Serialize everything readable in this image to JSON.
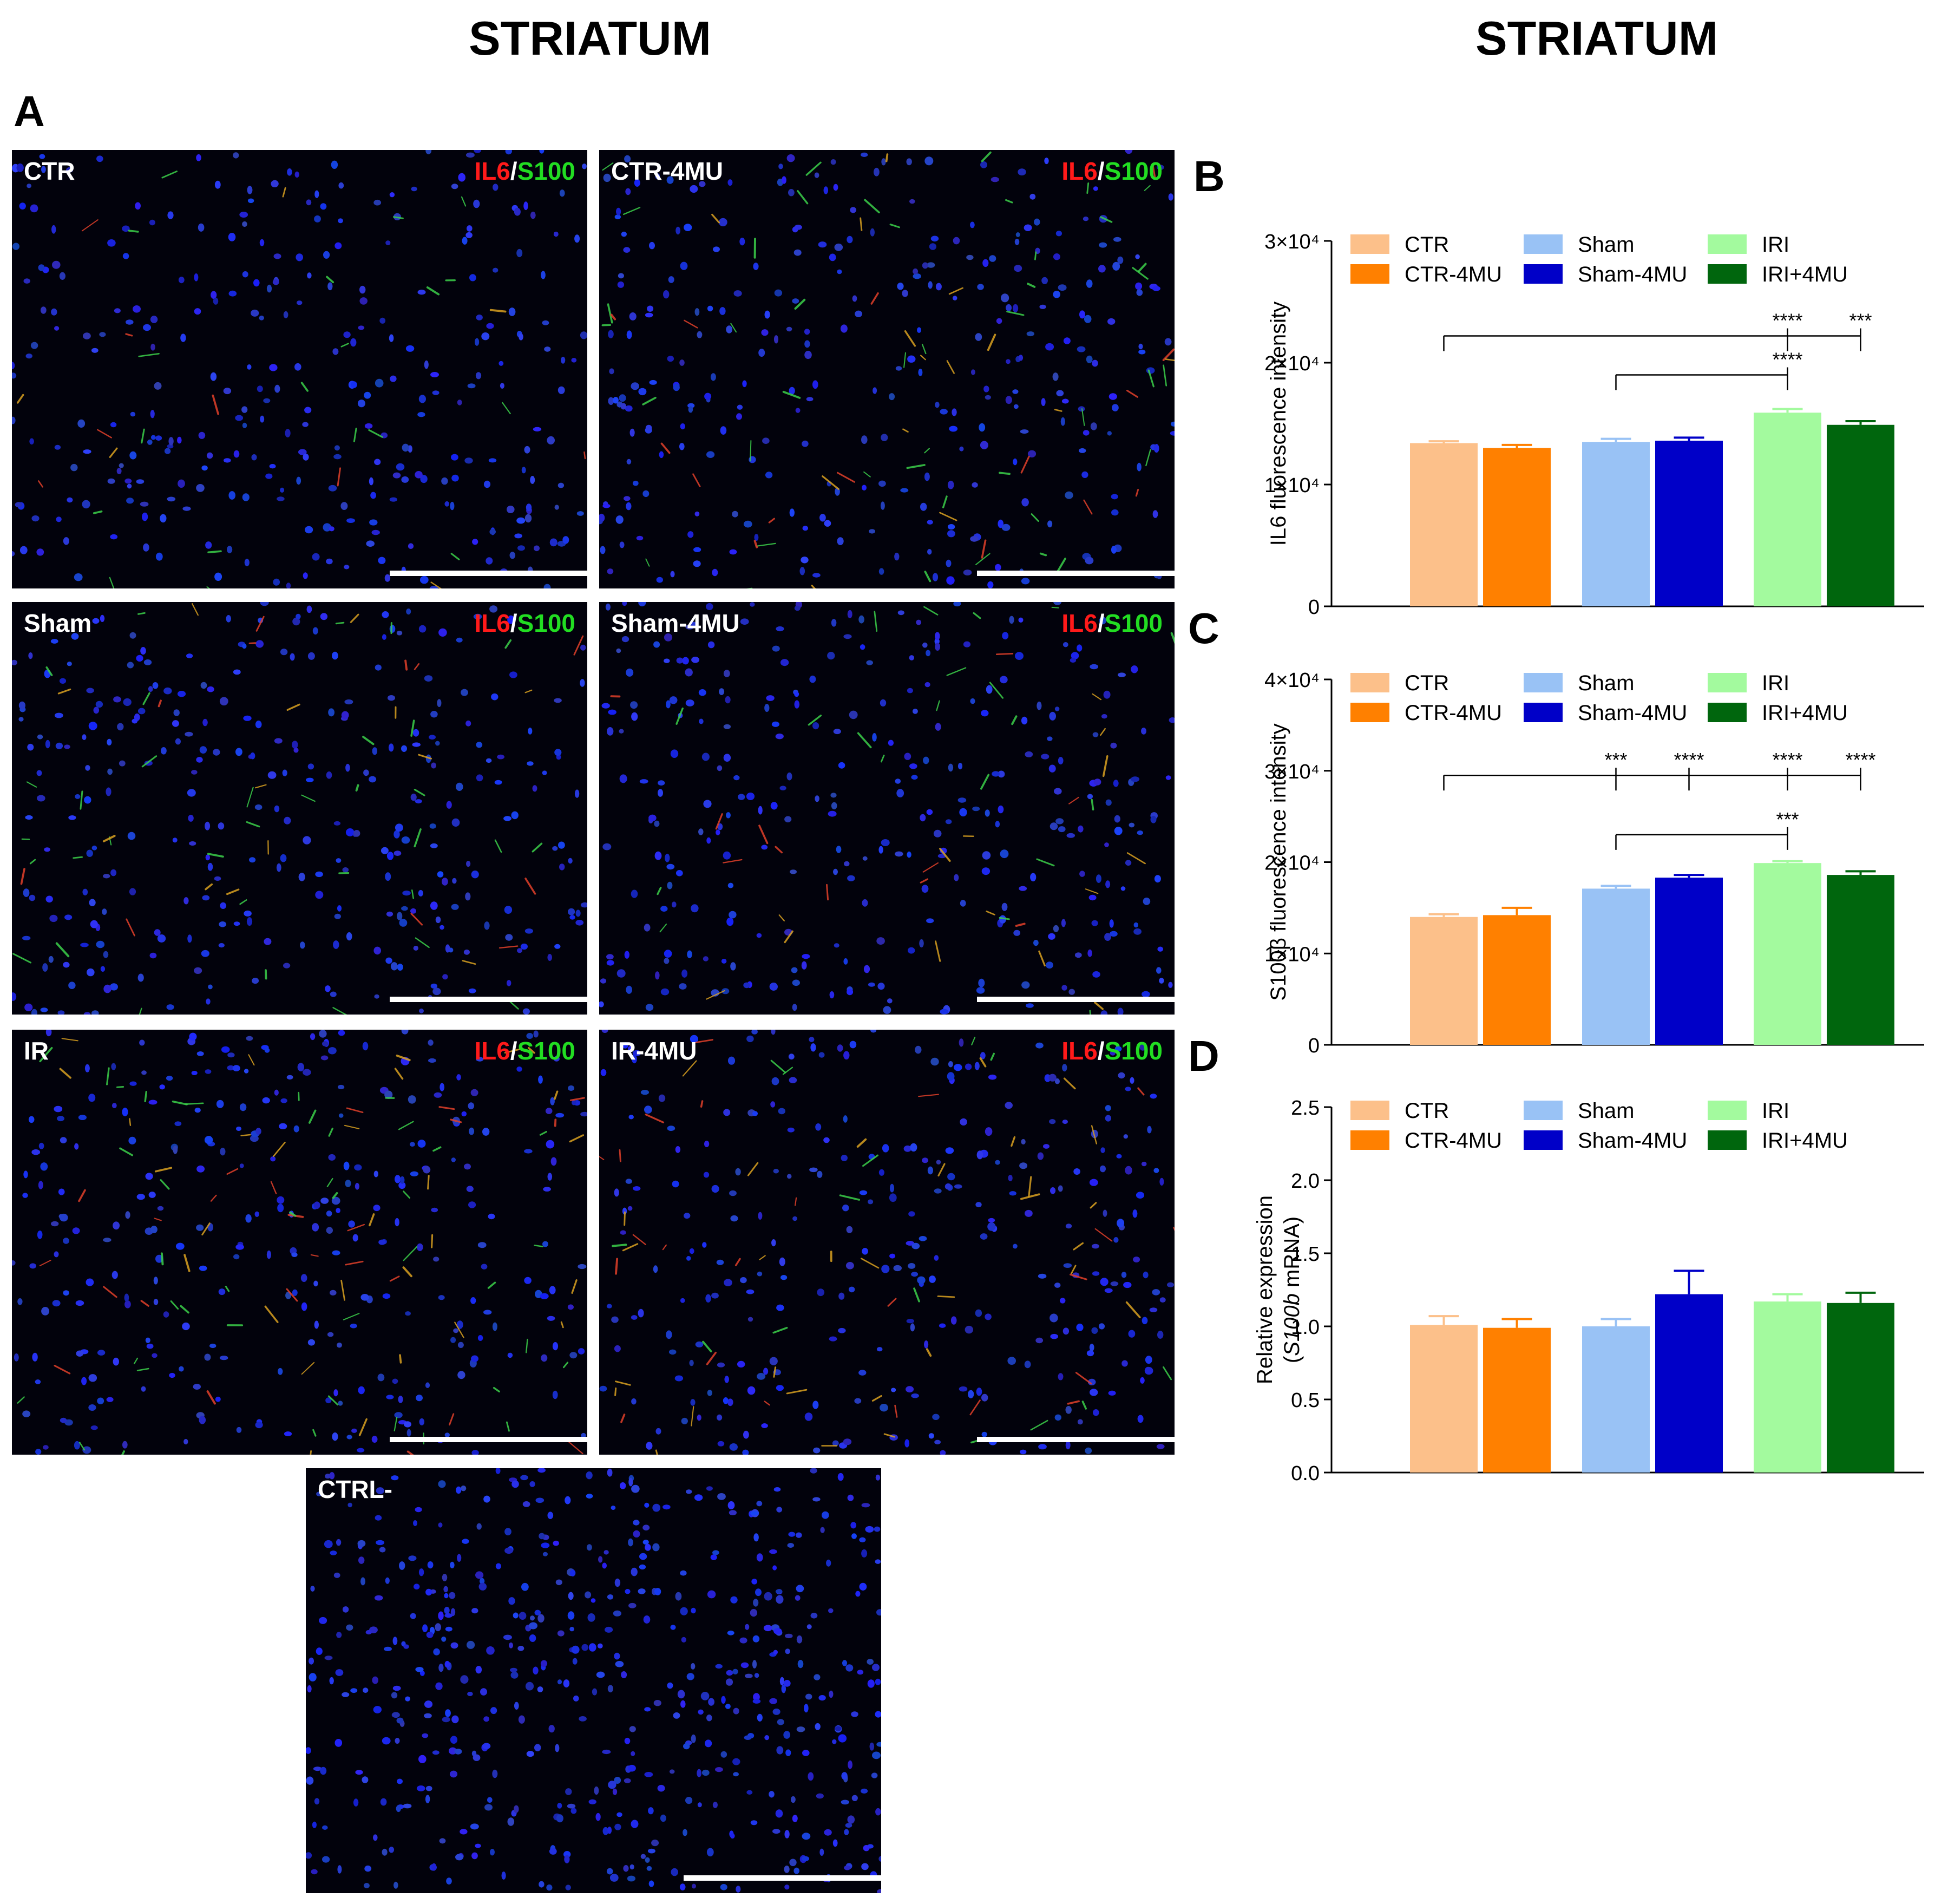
{
  "headings": {
    "left": "STRIATUM",
    "right": "STRIATUM"
  },
  "panel_letters": {
    "a": "A",
    "b": "B",
    "c": "C",
    "d": "D"
  },
  "micrographs": [
    {
      "label": "CTR",
      "stain_red": "IL6",
      "stain_sep": "/",
      "stain_green": "S100",
      "red_level": 0.15,
      "green_level": 0.2
    },
    {
      "label": "CTR-4MU",
      "stain_red": "IL6",
      "stain_sep": "/",
      "stain_green": "S100",
      "red_level": 0.3,
      "green_level": 0.5
    },
    {
      "label": "Sham",
      "stain_red": "IL6",
      "stain_sep": "/",
      "stain_green": "S100",
      "red_level": 0.35,
      "green_level": 0.3
    },
    {
      "label": "Sham-4MU",
      "stain_red": "IL6",
      "stain_sep": "/",
      "stain_green": "S100",
      "red_level": 0.3,
      "green_level": 0.2
    },
    {
      "label": "IR",
      "stain_red": "IL6",
      "stain_sep": "/",
      "stain_green": "S100",
      "red_level": 0.7,
      "green_level": 0.35
    },
    {
      "label": "IR-4MU",
      "stain_red": "IL6",
      "stain_sep": "/",
      "stain_green": "S100",
      "red_level": 0.6,
      "green_level": 0.15
    },
    {
      "label": "CTRL-",
      "stain_red": "",
      "stain_sep": "",
      "stain_green": "",
      "red_level": 0,
      "green_level": 0
    }
  ],
  "colors": {
    "CTR": "#fcc08a",
    "CTR-4MU": "#ff8000",
    "Sham": "#99c2f5",
    "Sham-4MU": "#0000c8",
    "IRI": "#a3fa9e",
    "IRI+4MU": "#00660d",
    "stain_red": "#ff1a1a",
    "stain_green": "#22dd22"
  },
  "chart_data": [
    {
      "type": "bar",
      "title": "",
      "ylabel": "IL6 fluorescence intensity",
      "ylim": [
        0,
        30000
      ],
      "yticks": [
        "0",
        "1×10⁴",
        "2×10⁴",
        "3×10⁴"
      ],
      "yticks_values": [
        0,
        10000,
        20000,
        30000
      ],
      "legend": [
        "CTR",
        "CTR-4MU",
        "Sham",
        "Sham-4MU",
        "IRI",
        "IRI+4MU"
      ],
      "categories": [
        "CTR",
        "CTR-4MU",
        "Sham",
        "Sham-4MU",
        "IRI",
        "IRI+4MU"
      ],
      "values": [
        13400,
        13000,
        13500,
        13600,
        15900,
        14900
      ],
      "errors": [
        150,
        250,
        250,
        250,
        300,
        300
      ],
      "significance": [
        {
          "from": 0,
          "to": [
            4,
            5
          ],
          "stars": [
            "****",
            "***"
          ],
          "y": 22200
        },
        {
          "from": 2,
          "to": [
            4
          ],
          "stars": [
            "****"
          ],
          "y": 19000
        }
      ]
    },
    {
      "type": "bar",
      "title": "",
      "ylabel": "S100β fluorescence intensity",
      "ylim": [
        0,
        40000
      ],
      "yticks": [
        "0",
        "1×10⁴",
        "2×10⁴",
        "3×10⁴",
        "4×10⁴"
      ],
      "yticks_values": [
        0,
        10000,
        20000,
        30000,
        40000
      ],
      "legend": [
        "CTR",
        "CTR-4MU",
        "Sham",
        "Sham-4MU",
        "IRI",
        "IRI+4MU"
      ],
      "categories": [
        "CTR",
        "CTR-4MU",
        "Sham",
        "Sham-4MU",
        "IRI",
        "IRI+4MU"
      ],
      "values": [
        14000,
        14200,
        17100,
        18300,
        19900,
        18600
      ],
      "errors": [
        300,
        800,
        300,
        300,
        200,
        400
      ],
      "significance": [
        {
          "from": 0,
          "to": [
            2,
            3,
            4,
            5
          ],
          "stars": [
            "***",
            "****",
            "****",
            "****"
          ],
          "y": 29500
        },
        {
          "from": 2,
          "to": [
            4
          ],
          "stars": [
            "***"
          ],
          "y": 23000
        }
      ]
    },
    {
      "type": "bar",
      "title": "",
      "ylabel": "Relative expression",
      "ylabel2_italic": "S100b",
      "ylabel2_rest": " mRNA)",
      "ylabel2_open": "(",
      "ylim": [
        0,
        2.5
      ],
      "yticks": [
        "0.0",
        "0.5",
        "1.0",
        "1.5",
        "2.0",
        "2.5"
      ],
      "yticks_values": [
        0,
        0.5,
        1.0,
        1.5,
        2.0,
        2.5
      ],
      "legend": [
        "CTR",
        "CTR-4MU",
        "Sham",
        "Sham-4MU",
        "IRI",
        "IRI+4MU"
      ],
      "categories": [
        "CTR",
        "CTR-4MU",
        "Sham",
        "Sham-4MU",
        "IRI",
        "IRI+4MU"
      ],
      "values": [
        1.01,
        0.99,
        1.0,
        1.22,
        1.17,
        1.16
      ],
      "errors": [
        0.06,
        0.06,
        0.05,
        0.16,
        0.05,
        0.07
      ],
      "significance": []
    }
  ]
}
